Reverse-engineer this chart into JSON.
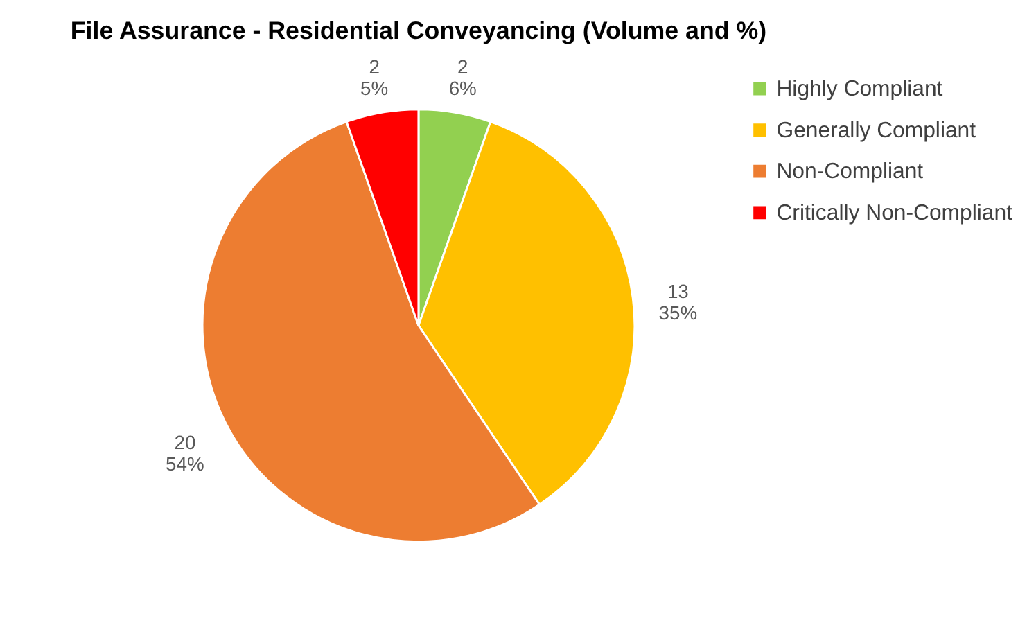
{
  "chart_data": {
    "type": "pie",
    "title": "File Assurance - Residential Conveyancing (Volume and %)",
    "categories": [
      "Highly Compliant",
      "Generally Compliant",
      "Non-Compliant",
      "Critically Non-Compliant"
    ],
    "values": [
      2,
      13,
      20,
      2
    ],
    "colors": [
      "#92d050",
      "#ffc000",
      "#ed7d31",
      "#ff0000"
    ],
    "value_labels": [
      "2\n6%",
      "13\n35%",
      "20\n54%",
      "2\n5%"
    ],
    "legend": "right"
  }
}
